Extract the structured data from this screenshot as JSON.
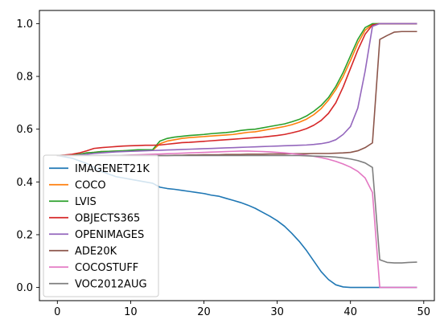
{
  "chart_data": {
    "type": "line",
    "title": "",
    "xlabel": "",
    "ylabel": "",
    "xlim": [
      -2.45,
      51.45
    ],
    "ylim": [
      -0.05,
      1.05
    ],
    "grid": false,
    "legend_position": "lower-left",
    "x_ticks": [
      0,
      10,
      20,
      30,
      40,
      50
    ],
    "x_tick_labels": [
      "0",
      "10",
      "20",
      "30",
      "40",
      "50"
    ],
    "y_ticks": [
      0.0,
      0.2,
      0.4,
      0.6,
      0.8,
      1.0
    ],
    "y_tick_labels": [
      "0.0",
      "0.2",
      "0.4",
      "0.6",
      "0.8",
      "1.0"
    ],
    "x": [
      0,
      1,
      2,
      3,
      4,
      5,
      6,
      7,
      8,
      9,
      10,
      11,
      12,
      13,
      14,
      15,
      16,
      17,
      18,
      19,
      20,
      21,
      22,
      23,
      24,
      25,
      26,
      27,
      28,
      29,
      30,
      31,
      32,
      33,
      34,
      35,
      36,
      37,
      38,
      39,
      40,
      41,
      42,
      43,
      44,
      45,
      46,
      47,
      48,
      49
    ],
    "series": [
      {
        "name": "IMAGENET21K",
        "color": "#1f77b4",
        "values": [
          0.5,
          0.495,
          0.49,
          0.48,
          0.47,
          0.455,
          0.44,
          0.43,
          0.42,
          0.415,
          0.41,
          0.405,
          0.4,
          0.395,
          0.38,
          0.375,
          0.372,
          0.368,
          0.364,
          0.36,
          0.356,
          0.35,
          0.346,
          0.338,
          0.33,
          0.322,
          0.312,
          0.3,
          0.285,
          0.27,
          0.253,
          0.232,
          0.205,
          0.175,
          0.14,
          0.1,
          0.06,
          0.03,
          0.01,
          0.002,
          0.0,
          0.0,
          0.0,
          0.0,
          0.0,
          0.0,
          0.0,
          0.0,
          0.0,
          0.0
        ]
      },
      {
        "name": "COCO",
        "color": "#ff7f0e",
        "values": [
          0.5,
          0.5,
          0.5,
          0.505,
          0.51,
          0.512,
          0.515,
          0.516,
          0.517,
          0.518,
          0.519,
          0.52,
          0.52,
          0.52,
          0.545,
          0.555,
          0.56,
          0.565,
          0.568,
          0.57,
          0.572,
          0.574,
          0.576,
          0.578,
          0.58,
          0.584,
          0.588,
          0.59,
          0.595,
          0.6,
          0.605,
          0.61,
          0.617,
          0.626,
          0.638,
          0.655,
          0.678,
          0.71,
          0.75,
          0.8,
          0.86,
          0.925,
          0.975,
          0.998,
          1.0,
          1.0,
          1.0,
          1.0,
          1.0,
          1.0
        ]
      },
      {
        "name": "LVIS",
        "color": "#2ca02c",
        "values": [
          0.5,
          0.5,
          0.502,
          0.505,
          0.51,
          0.512,
          0.515,
          0.516,
          0.517,
          0.518,
          0.52,
          0.522,
          0.522,
          0.522,
          0.555,
          0.565,
          0.57,
          0.573,
          0.576,
          0.578,
          0.58,
          0.583,
          0.585,
          0.587,
          0.59,
          0.595,
          0.598,
          0.6,
          0.605,
          0.61,
          0.615,
          0.62,
          0.628,
          0.637,
          0.65,
          0.668,
          0.69,
          0.72,
          0.762,
          0.815,
          0.878,
          0.94,
          0.985,
          1.0,
          1.0,
          1.0,
          1.0,
          1.0,
          1.0,
          1.0
        ]
      },
      {
        "name": "OBJECTS365",
        "color": "#d62728",
        "values": [
          0.5,
          0.502,
          0.505,
          0.51,
          0.518,
          0.527,
          0.53,
          0.532,
          0.534,
          0.536,
          0.537,
          0.538,
          0.539,
          0.539,
          0.54,
          0.543,
          0.546,
          0.549,
          0.55,
          0.552,
          0.554,
          0.556,
          0.558,
          0.56,
          0.562,
          0.564,
          0.566,
          0.568,
          0.57,
          0.573,
          0.576,
          0.58,
          0.586,
          0.593,
          0.602,
          0.615,
          0.633,
          0.66,
          0.7,
          0.76,
          0.83,
          0.9,
          0.96,
          0.995,
          1.0,
          1.0,
          1.0,
          1.0,
          1.0,
          1.0
        ]
      },
      {
        "name": "OPENIMAGES",
        "color": "#9467bd",
        "values": [
          0.5,
          0.5,
          0.5,
          0.502,
          0.505,
          0.508,
          0.51,
          0.512,
          0.514,
          0.515,
          0.516,
          0.517,
          0.518,
          0.519,
          0.52,
          0.521,
          0.522,
          0.523,
          0.524,
          0.525,
          0.526,
          0.527,
          0.528,
          0.529,
          0.53,
          0.531,
          0.532,
          0.533,
          0.534,
          0.535,
          0.536,
          0.537,
          0.538,
          0.539,
          0.54,
          0.542,
          0.545,
          0.55,
          0.56,
          0.58,
          0.61,
          0.68,
          0.82,
          0.99,
          1.0,
          1.0,
          1.0,
          1.0,
          1.0,
          1.0
        ]
      },
      {
        "name": "ADE20K",
        "color": "#8c564b",
        "values": [
          0.5,
          0.5,
          0.5,
          0.5,
          0.5,
          0.5,
          0.5,
          0.5,
          0.5,
          0.5,
          0.5,
          0.5,
          0.5,
          0.5,
          0.5,
          0.5,
          0.501,
          0.501,
          0.502,
          0.502,
          0.503,
          0.503,
          0.503,
          0.504,
          0.504,
          0.504,
          0.505,
          0.505,
          0.505,
          0.506,
          0.506,
          0.506,
          0.507,
          0.507,
          0.507,
          0.508,
          0.508,
          0.508,
          0.509,
          0.51,
          0.512,
          0.518,
          0.53,
          0.548,
          0.94,
          0.955,
          0.968,
          0.97,
          0.97,
          0.97
        ]
      },
      {
        "name": "COCOSTUFF",
        "color": "#e377c2",
        "values": [
          0.5,
          0.5,
          0.5,
          0.5,
          0.5,
          0.5,
          0.5,
          0.5,
          0.5,
          0.501,
          0.502,
          0.503,
          0.504,
          0.505,
          0.506,
          0.507,
          0.508,
          0.509,
          0.51,
          0.511,
          0.512,
          0.513,
          0.514,
          0.515,
          0.516,
          0.517,
          0.517,
          0.516,
          0.515,
          0.514,
          0.512,
          0.51,
          0.507,
          0.504,
          0.501,
          0.497,
          0.492,
          0.486,
          0.478,
          0.468,
          0.456,
          0.44,
          0.415,
          0.36,
          0.0,
          0.0,
          0.0,
          0.0,
          0.0,
          0.0
        ]
      },
      {
        "name": "VOC2012AUG",
        "color": "#7f7f7f",
        "values": [
          0.5,
          0.5,
          0.5,
          0.5,
          0.5,
          0.5,
          0.5,
          0.5,
          0.5,
          0.5,
          0.5,
          0.5,
          0.5,
          0.5,
          0.5,
          0.5,
          0.5,
          0.5,
          0.5,
          0.5,
          0.5,
          0.5,
          0.5,
          0.5,
          0.5,
          0.5,
          0.5,
          0.5,
          0.5,
          0.5,
          0.5,
          0.5,
          0.5,
          0.5,
          0.499,
          0.498,
          0.497,
          0.496,
          0.494,
          0.491,
          0.487,
          0.481,
          0.472,
          0.455,
          0.105,
          0.095,
          0.093,
          0.093,
          0.095,
          0.096
        ]
      }
    ]
  }
}
